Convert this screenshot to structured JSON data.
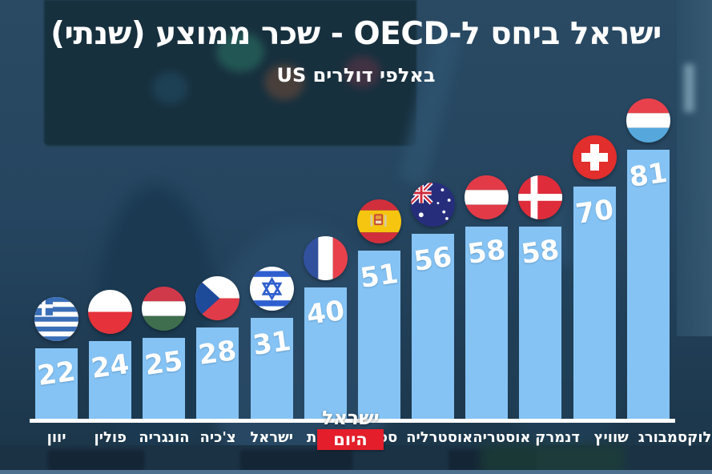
{
  "title": "ישראל ביחס ל-OECD - שכר ממוצע (שנתי)",
  "subtitle": "באלפי דולרים US",
  "logo": {
    "line1": "ישראל",
    "line2": "היום"
  },
  "chart_data": {
    "type": "bar",
    "orientation": "vertical",
    "title": "ישראל ביחס ל-OECD - שכר ממוצע (שנתי)",
    "subtitle": "באלפי דולרים US",
    "unit_label": "באלפי דולרים US",
    "categories": [
      "יוון",
      "פולין",
      "הונגריה",
      "צ'כיה",
      "ישראל",
      "צרפת",
      "ספרד",
      "אוסטרליה",
      "אוסטריה",
      "דנמרק",
      "שוויץ",
      "לוקסמבורג"
    ],
    "values": [
      22,
      24,
      25,
      28,
      31,
      40,
      51,
      56,
      58,
      58,
      70,
      81
    ],
    "flag_icons": [
      "flag-greece",
      "flag-poland",
      "flag-hungary",
      "flag-czechia",
      "flag-israel",
      "flag-france",
      "flag-spain",
      "flag-australia",
      "flag-austria",
      "flag-denmark",
      "flag-switzerland",
      "flag-luxembourg"
    ],
    "ylim": [
      0,
      85
    ],
    "grid": false,
    "legend": "none",
    "value_labels": "on-bar"
  },
  "colors": {
    "bar": "#85C3F4",
    "background": "#24445E",
    "axis": "#FFFFFF",
    "text": "#FFFFFF",
    "logo_red": "#E41E2B"
  }
}
